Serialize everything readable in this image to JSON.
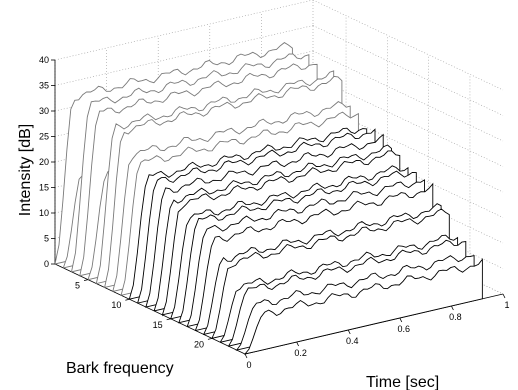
{
  "chart_data": {
    "type": "waterfall-3d",
    "xlabel": "Time [sec]",
    "ylabel": "Bark frequency",
    "zlabel": "Intensity [dB]",
    "x_ticks": [
      "0",
      "0.2",
      "0.4",
      "0.6",
      "0.8",
      "1"
    ],
    "y_ticks": [
      "5",
      "10",
      "15",
      "20"
    ],
    "z_ticks": [
      "0",
      "5",
      "10",
      "15",
      "20",
      "25",
      "30",
      "35",
      "40"
    ],
    "xlim": [
      0,
      1
    ],
    "ylim": [
      1,
      24
    ],
    "zlim": [
      0,
      40
    ],
    "grid": true,
    "series": [
      {
        "bark": 1,
        "level": 32
      },
      {
        "bark": 2,
        "level": 18
      },
      {
        "bark": 3,
        "level": 32
      },
      {
        "bark": 4,
        "level": 31
      },
      {
        "bark": 5,
        "level": 20
      },
      {
        "bark": 6,
        "level": 30
      },
      {
        "bark": 7,
        "level": 30
      },
      {
        "bark": 8,
        "level": 26
      },
      {
        "bark": 9,
        "level": 25
      },
      {
        "bark": 10,
        "level": 23
      },
      {
        "bark": 11,
        "level": 23
      },
      {
        "bark": 12,
        "level": 22
      },
      {
        "bark": 13,
        "level": 21
      },
      {
        "bark": 14,
        "level": 21
      },
      {
        "bark": 15,
        "level": 19
      },
      {
        "bark": 16,
        "level": 19
      },
      {
        "bark": 17,
        "level": 18
      },
      {
        "bark": 18,
        "level": 17
      },
      {
        "bark": 19,
        "level": 14
      },
      {
        "bark": 20,
        "level": 14
      },
      {
        "bark": 21,
        "level": 10
      },
      {
        "bark": 22,
        "level": 10
      },
      {
        "bark": 23,
        "level": 8
      },
      {
        "bark": 24,
        "level": 7
      }
    ]
  }
}
